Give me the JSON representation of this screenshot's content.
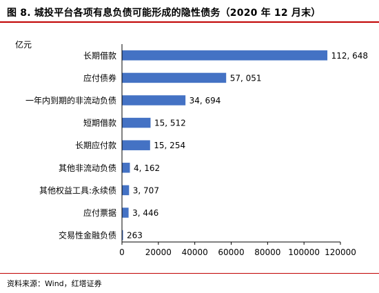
{
  "title": "图 8. 城投平台各项有息负债可能形成的隐性债务（2020 年 12 月末）",
  "source": "资料来源：Wind，红塔证券",
  "colors": {
    "bar": "#4472c4",
    "rule": "#c00000",
    "axis": "#000000"
  },
  "chart_data": {
    "type": "bar",
    "orientation": "horizontal",
    "title": "图 8. 城投平台各项有息负债可能形成的隐性债务（2020 年 12 月末）",
    "unit_label": "亿元",
    "categories": [
      "长期借款",
      "应付债券",
      "一年内到期的非流动负债",
      "短期借款",
      "长期应付款",
      "其他非流动负债",
      "其他权益工具:永续债",
      "应付票据",
      "交易性金融负债"
    ],
    "values": [
      112648,
      57051,
      34694,
      15512,
      15254,
      4162,
      3707,
      3446,
      263
    ],
    "value_labels": [
      "112, 648",
      "57, 051",
      "34, 694",
      "15, 512",
      "15, 254",
      "4, 162",
      "3, 707",
      "3, 446",
      "263"
    ],
    "xlim": [
      0,
      120000
    ],
    "x_ticks": [
      0,
      20000,
      40000,
      60000,
      80000,
      100000,
      120000
    ],
    "grid": false,
    "legend": "none"
  }
}
